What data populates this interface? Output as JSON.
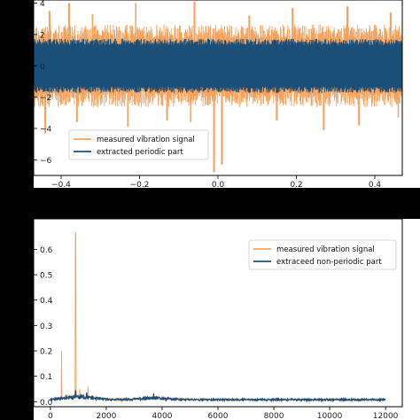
{
  "chart_data": [
    {
      "type": "line",
      "title": "",
      "xlabel": "",
      "ylabel": "",
      "xlim": [
        -0.47,
        0.47
      ],
      "ylim": [
        -7.0,
        4.2
      ],
      "x_ticks": [
        -0.4,
        -0.2,
        0.0,
        0.2,
        0.4
      ],
      "x_tick_labels": [
        "−0.4",
        "−0.2",
        "0.0",
        "0.2",
        "0.4"
      ],
      "y_ticks": [
        -6,
        -4,
        -2,
        0,
        2,
        4
      ],
      "y_tick_labels": [
        "−6",
        "−4",
        "−2",
        "0",
        "2",
        "4"
      ],
      "legend_position": "bottom-left",
      "grid": false,
      "series": [
        {
          "name": "measured vibration signal",
          "color": "#f5a25d",
          "envelope": {
            "upper_typical": 2.4,
            "lower_typical": -2.4,
            "upper_peaks": [
              [
                -0.43,
                3.5
              ],
              [
                -0.38,
                4.0
              ],
              [
                -0.32,
                3.3
              ],
              [
                -0.21,
                4.0
              ],
              [
                -0.06,
                4.1
              ],
              [
                0.08,
                3.2
              ],
              [
                0.19,
                3.7
              ],
              [
                0.33,
                3.8
              ],
              [
                0.44,
                3.4
              ]
            ],
            "lower_peaks": [
              [
                -0.44,
                -4.3
              ],
              [
                -0.36,
                -3.6
              ],
              [
                -0.23,
                -3.9
              ],
              [
                -0.13,
                -3.5
              ],
              [
                -0.07,
                -3.6
              ],
              [
                -0.01,
                -6.8
              ],
              [
                0.01,
                -6.3
              ],
              [
                0.15,
                -3.5
              ],
              [
                0.27,
                -4.1
              ],
              [
                0.36,
                -3.8
              ],
              [
                0.46,
                -3.3
              ]
            ]
          }
        },
        {
          "name": "extracted periodic part",
          "color": "#1a4f7a",
          "envelope": {
            "upper_typical": 1.65,
            "lower_typical": -1.65
          }
        }
      ]
    },
    {
      "type": "line",
      "title": "",
      "xlabel": "",
      "ylabel": "",
      "xlim": [
        -600,
        12600
      ],
      "ylim": [
        -0.02,
        0.72
      ],
      "x_ticks": [
        0,
        2000,
        4000,
        6000,
        8000,
        10000,
        12000
      ],
      "x_tick_labels": [
        "0",
        "2000",
        "4000",
        "6000",
        "8000",
        "10000",
        "12000"
      ],
      "y_ticks": [
        0.0,
        0.1,
        0.2,
        0.3,
        0.4,
        0.5,
        0.6
      ],
      "y_tick_labels": [
        "0.0",
        "0.1",
        "0.2",
        "0.3",
        "0.4",
        "0.5",
        "0.6"
      ],
      "legend_position": "top-right",
      "grid": false,
      "series": [
        {
          "name": "measured vibration signal",
          "color": "#f5a25d",
          "peaks": [
            [
              400,
              0.2
            ],
            [
              900,
              0.665
            ],
            [
              1350,
              0.06
            ],
            [
              1050,
              0.05
            ]
          ]
        },
        {
          "name": "extraceed non-periodic part",
          "color": "#1a4f7a",
          "peaks": [
            [
              900,
              0.05
            ],
            [
              1300,
              0.045
            ],
            [
              3700,
              0.035
            ]
          ]
        }
      ]
    }
  ]
}
